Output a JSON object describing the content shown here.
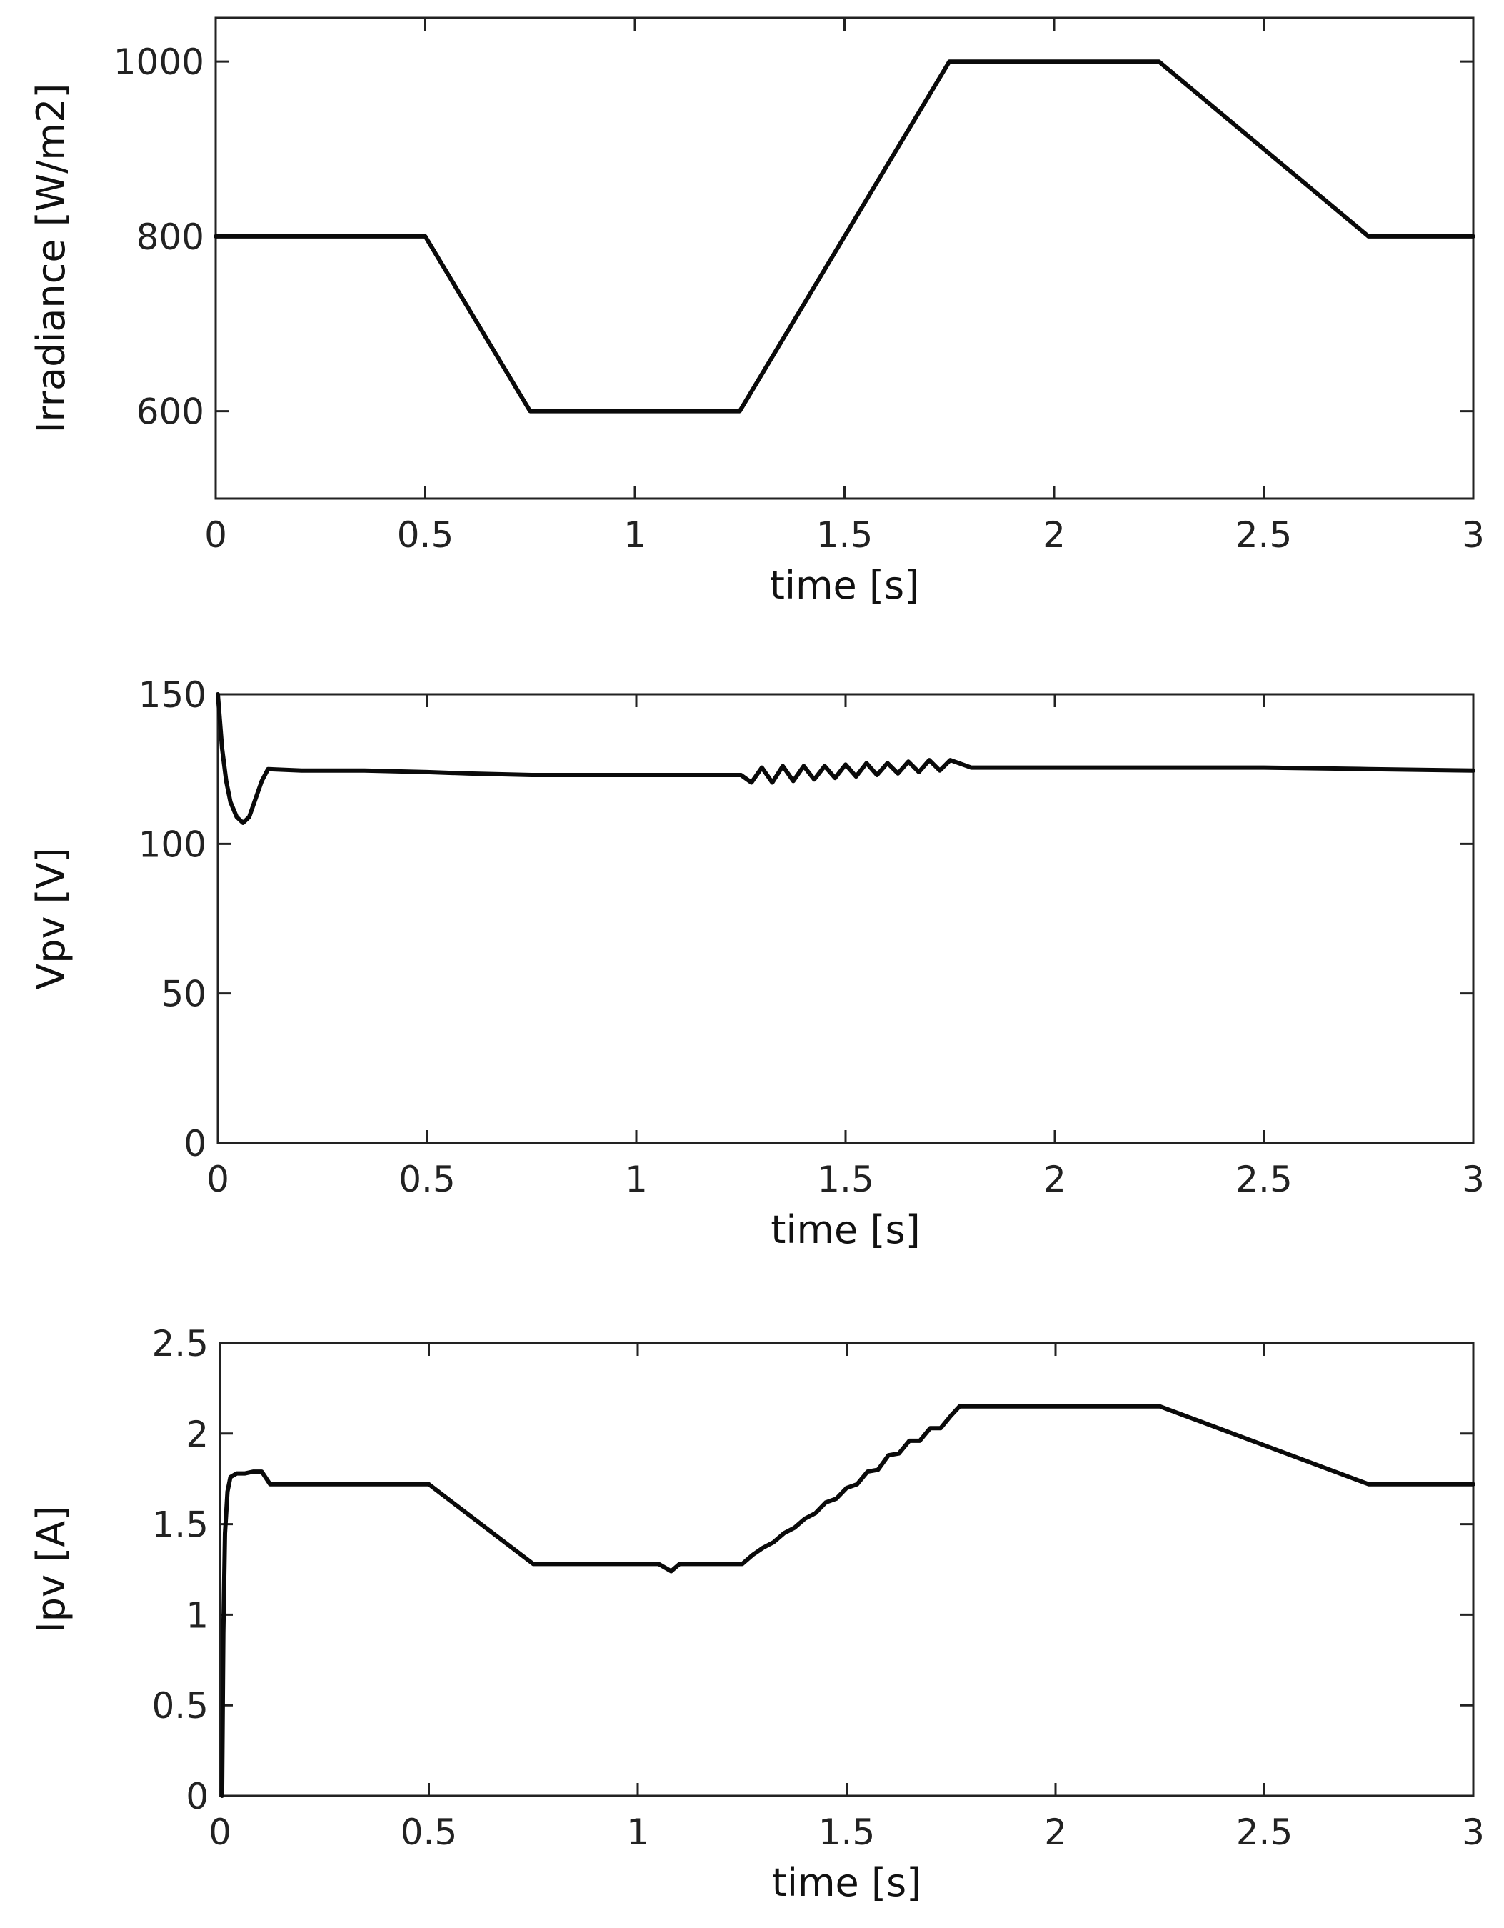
{
  "chart_data": [
    {
      "type": "line",
      "xlabel": "time [s]",
      "ylabel": "Irradiance [W/m2]",
      "xlim": [
        0,
        3
      ],
      "ylim": [
        500,
        1050
      ],
      "xticks": [
        "0",
        "0.5",
        "1",
        "1.5",
        "2",
        "2.5",
        "3"
      ],
      "yticks": [
        "600",
        "800",
        "1000"
      ],
      "grid": false,
      "series": [
        {
          "x": [
            0,
            0.5,
            0.75,
            1.25,
            1.75,
            2.25,
            2.75,
            3
          ],
          "y": [
            800,
            800,
            600,
            600,
            1000,
            1000,
            800,
            800
          ]
        }
      ]
    },
    {
      "type": "line",
      "xlabel": "time [s]",
      "ylabel": "Vpv [V]",
      "xlim": [
        0,
        3
      ],
      "ylim": [
        0,
        150
      ],
      "xticks": [
        "0",
        "0.5",
        "1",
        "1.5",
        "2",
        "2.5",
        "3"
      ],
      "yticks": [
        "0",
        "50",
        "100",
        "150"
      ],
      "grid": false,
      "series": [
        {
          "x": [
            0,
            0.01,
            0.02,
            0.03,
            0.045,
            0.06,
            0.075,
            0.09,
            0.105,
            0.12,
            0.2,
            0.35,
            0.5,
            0.6,
            0.75,
            0.9,
            1.1,
            1.25,
            1.275,
            1.3,
            1.325,
            1.35,
            1.375,
            1.4,
            1.425,
            1.45,
            1.475,
            1.5,
            1.525,
            1.55,
            1.575,
            1.6,
            1.625,
            1.65,
            1.675,
            1.7,
            1.725,
            1.75,
            1.8,
            2.0,
            2.25,
            2.5,
            2.75,
            3.0
          ],
          "y": [
            150,
            132,
            121,
            114,
            109,
            107,
            109,
            115,
            121,
            125,
            124.5,
            124.5,
            124,
            123.5,
            123,
            123,
            123,
            123,
            120.5,
            125.5,
            120.5,
            126,
            121,
            126,
            121.5,
            126,
            122,
            126.5,
            122.5,
            127,
            123,
            127,
            123.5,
            127.5,
            124,
            128,
            124.5,
            128,
            125.5,
            125.5,
            125.5,
            125.5,
            125,
            124.5
          ]
        }
      ]
    },
    {
      "type": "line",
      "xlabel": "time [s]",
      "ylabel": "Ipv [A]",
      "xlim": [
        0,
        3
      ],
      "ylim": [
        0,
        2.5
      ],
      "xticks": [
        "0",
        "0.5",
        "1",
        "1.5",
        "2",
        "2.5",
        "3"
      ],
      "yticks": [
        "0",
        "0.5",
        "1",
        "1.5",
        "2",
        "2.5"
      ],
      "grid": false,
      "series": [
        {
          "x": [
            0.005,
            0.008,
            0.012,
            0.018,
            0.025,
            0.04,
            0.06,
            0.08,
            0.1,
            0.12,
            0.3,
            0.5,
            0.75,
            1.05,
            1.08,
            1.1,
            1.25,
            1.275,
            1.3,
            1.325,
            1.35,
            1.375,
            1.4,
            1.425,
            1.45,
            1.475,
            1.5,
            1.525,
            1.55,
            1.575,
            1.6,
            1.625,
            1.65,
            1.675,
            1.7,
            1.725,
            1.75,
            1.77,
            2.0,
            2.25,
            2.75,
            3.0
          ],
          "y": [
            0.0,
            0.9,
            1.45,
            1.68,
            1.76,
            1.78,
            1.78,
            1.79,
            1.79,
            1.72,
            1.72,
            1.72,
            1.28,
            1.28,
            1.24,
            1.28,
            1.28,
            1.33,
            1.37,
            1.4,
            1.45,
            1.48,
            1.53,
            1.56,
            1.62,
            1.64,
            1.7,
            1.72,
            1.79,
            1.8,
            1.88,
            1.89,
            1.96,
            1.96,
            2.03,
            2.03,
            2.1,
            2.15,
            2.15,
            2.15,
            1.72,
            1.72
          ]
        }
      ]
    }
  ]
}
